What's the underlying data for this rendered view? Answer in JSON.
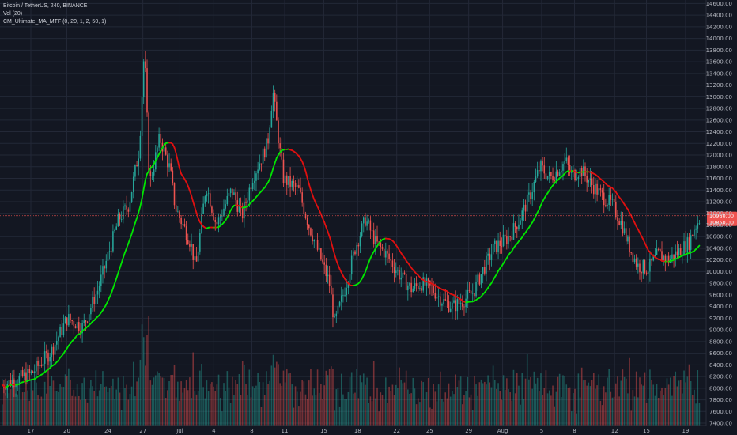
{
  "legend": {
    "symbol_line": "Bitcoin / TetherUS, 240, BINANCE",
    "vol_line": "Vol (20)",
    "ma_line": "CM_Ultimate_MA_MTF (0, 20, 1, 2, 50, 1)"
  },
  "colors": {
    "background": "#131722",
    "grid": "#232837",
    "up": "#26a69a",
    "down": "#ef5350",
    "ma_up": "#00e600",
    "ma_down": "#e01010",
    "price_badge": "#ef5350"
  },
  "price_badges": [
    "10960.00",
    "10850.00"
  ],
  "chart_data": {
    "type": "candlestick",
    "title": "Bitcoin / TetherUS, 240, BINANCE",
    "y_ticks": [
      14600,
      14400,
      14200,
      14000,
      13800,
      13600,
      13400,
      13200,
      13000,
      12800,
      12600,
      12400,
      12200,
      12000,
      11800,
      11600,
      11400,
      11200,
      11000,
      10800,
      10600,
      10400,
      10200,
      10000,
      9800,
      9600,
      9400,
      9200,
      9000,
      8800,
      8600,
      8400,
      8200,
      8000,
      7800,
      7600,
      7400
    ],
    "y_tick_labels": [
      "14600.00",
      "14400.00",
      "14200.00",
      "14000.00",
      "13800.00",
      "13600.00",
      "13400.00",
      "13200.00",
      "13000.00",
      "12800.00",
      "12600.00",
      "12400.00",
      "12200.00",
      "12000.00",
      "11800.00",
      "11600.00",
      "11400.00",
      "11200.00",
      "11000.00",
      "10800.00",
      "10600.00",
      "10400.00",
      "10200.00",
      "10000.00",
      "9800.00",
      "9600.00",
      "9400.00",
      "9200.00",
      "9000.00",
      "8800.00",
      "8600.00",
      "8400.00",
      "8200.00",
      "8000.00",
      "7800.00",
      "7600.00",
      "7400.00"
    ],
    "ylim": [
      7360,
      14660
    ],
    "x_ticks": [
      "17",
      "20",
      "24",
      "27",
      "Jul",
      "4",
      "8",
      "11",
      "15",
      "18",
      "22",
      "25",
      "29",
      "Aug",
      "5",
      "8",
      "12",
      "15",
      "19"
    ],
    "price_path": [
      [
        0,
        8050
      ],
      [
        3,
        8250
      ],
      [
        5,
        8650
      ],
      [
        6.5,
        9200
      ],
      [
        8,
        9050
      ],
      [
        9.5,
        9700
      ],
      [
        11.5,
        10900
      ],
      [
        12.5,
        11150
      ],
      [
        13.5,
        12100
      ],
      [
        14,
        13850
      ],
      [
        14.5,
        11500
      ],
      [
        15.5,
        12300
      ],
      [
        16.5,
        11750
      ],
      [
        17,
        11100
      ],
      [
        18.5,
        10500
      ],
      [
        19,
        10050
      ],
      [
        20,
        11500
      ],
      [
        21,
        10800
      ],
      [
        22.5,
        11400
      ],
      [
        23.5,
        10950
      ],
      [
        24.5,
        11600
      ],
      [
        26,
        12200
      ],
      [
        26.5,
        13100
      ],
      [
        27.5,
        11600
      ],
      [
        29,
        11400
      ],
      [
        30,
        10800
      ],
      [
        31,
        10300
      ],
      [
        32,
        9800
      ],
      [
        32.5,
        9100
      ],
      [
        33.5,
        9700
      ],
      [
        34.5,
        10400
      ],
      [
        35.5,
        10900
      ],
      [
        36.5,
        10500
      ],
      [
        37.5,
        10300
      ],
      [
        39,
        9900
      ],
      [
        40,
        9700
      ],
      [
        41,
        9800
      ],
      [
        42,
        9700
      ],
      [
        43,
        9500
      ],
      [
        44,
        9400
      ],
      [
        45,
        9500
      ],
      [
        46,
        9650
      ],
      [
        47,
        10050
      ],
      [
        48,
        10400
      ],
      [
        49.5,
        10600
      ],
      [
        50.5,
        10900
      ],
      [
        51.5,
        11300
      ],
      [
        52.5,
        11800
      ],
      [
        53.5,
        11600
      ],
      [
        55,
        11900
      ],
      [
        55.5,
        11650
      ],
      [
        56.5,
        11750
      ],
      [
        57.5,
        11500
      ],
      [
        58.5,
        11300
      ],
      [
        59.5,
        11150
      ],
      [
        60.5,
        10800
      ],
      [
        61,
        10500
      ],
      [
        62,
        10100
      ],
      [
        63,
        10050
      ],
      [
        64,
        10300
      ],
      [
        65,
        10200
      ],
      [
        66,
        10350
      ],
      [
        67,
        10500
      ],
      [
        67.5,
        10750
      ],
      [
        68,
        10900
      ]
    ],
    "volume_scale": [
      0,
      3000
    ],
    "moving_average": "computed from price_path, colored green when rising and red when falling"
  }
}
